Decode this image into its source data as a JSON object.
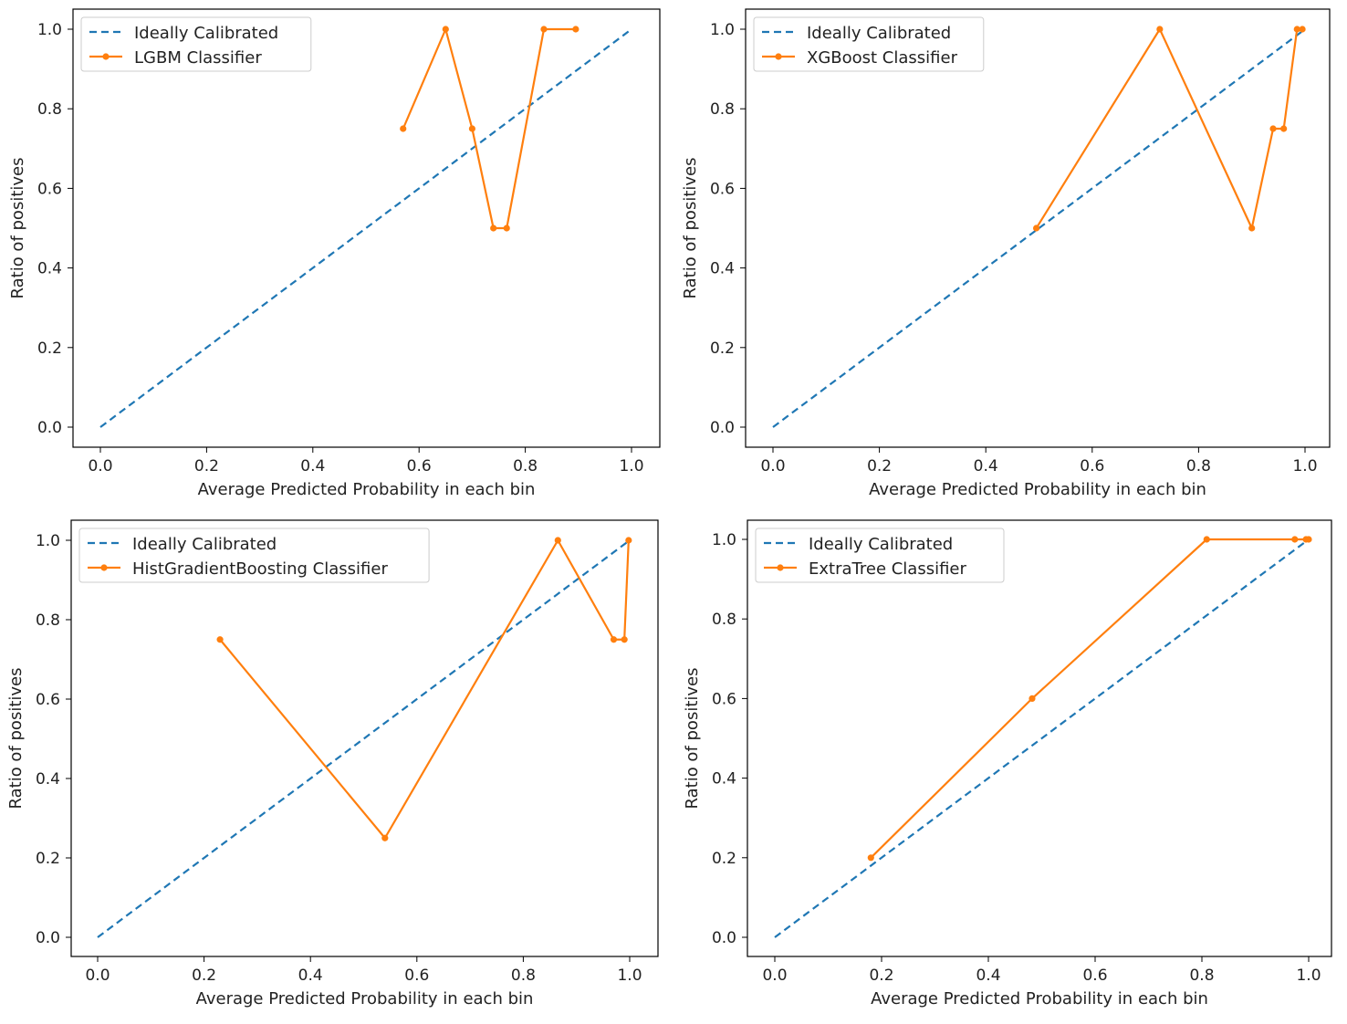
{
  "figure": {
    "shared": {
      "xlabel": "Average Predicted Probability in each bin",
      "ylabel": "Ratio of positives",
      "xticks": [
        "0.0",
        "0.2",
        "0.4",
        "0.6",
        "0.8",
        "1.0"
      ],
      "yticks": [
        "0.0",
        "0.2",
        "0.4",
        "0.6",
        "0.8",
        "1.0"
      ],
      "reference_label": "Ideally Calibrated"
    }
  },
  "colors": {
    "reference": "#1f77b4",
    "model": "#ff7f0e"
  },
  "chart_data": [
    {
      "type": "line",
      "position": "top-left",
      "title": "",
      "xlabel": "Average Predicted Probability in each bin",
      "ylabel": "Ratio of positives",
      "xlim": [
        0.0,
        1.0
      ],
      "ylim": [
        0.0,
        1.0
      ],
      "legend": "top-left",
      "series": [
        {
          "name": "Ideally Calibrated",
          "style": "dashed",
          "x": [
            0.0,
            1.0
          ],
          "y": [
            0.0,
            1.0
          ]
        },
        {
          "name": "LGBM Classifier",
          "style": "solid-marker",
          "x": [
            0.57,
            0.65,
            0.7,
            0.74,
            0.765,
            0.835,
            0.895
          ],
          "y": [
            0.75,
            1.0,
            0.75,
            0.5,
            0.5,
            1.0,
            1.0
          ]
        }
      ]
    },
    {
      "type": "line",
      "position": "top-right",
      "title": "",
      "xlabel": "Average Predicted Probability in each bin",
      "ylabel": "Ratio of positives",
      "xlim": [
        0.0,
        1.0
      ],
      "ylim": [
        0.0,
        1.0
      ],
      "legend": "top-left",
      "series": [
        {
          "name": "Ideally Calibrated",
          "style": "dashed",
          "x": [
            0.0,
            1.0
          ],
          "y": [
            0.0,
            1.0
          ]
        },
        {
          "name": "XGBoost Classifier",
          "style": "solid-marker",
          "x": [
            0.495,
            0.727,
            0.9,
            0.94,
            0.96,
            0.985,
            0.995
          ],
          "y": [
            0.5,
            1.0,
            0.5,
            0.75,
            0.75,
            1.0,
            1.0
          ]
        }
      ]
    },
    {
      "type": "line",
      "position": "bottom-left",
      "title": "",
      "xlabel": "Average Predicted Probability in each bin",
      "ylabel": "Ratio of positives",
      "xlim": [
        0.0,
        1.0
      ],
      "ylim": [
        0.0,
        1.0
      ],
      "legend": "top-left",
      "series": [
        {
          "name": "Ideally Calibrated",
          "style": "dashed",
          "x": [
            0.0,
            1.0
          ],
          "y": [
            0.0,
            1.0
          ]
        },
        {
          "name": "HistGradientBoosting Classifier",
          "style": "solid-marker",
          "x": [
            0.23,
            0.54,
            0.865,
            0.97,
            0.99,
            0.998
          ],
          "y": [
            0.75,
            0.25,
            1.0,
            0.75,
            0.75,
            1.0
          ]
        }
      ]
    },
    {
      "type": "line",
      "position": "bottom-right",
      "title": "",
      "xlabel": "Average Predicted Probability in each bin",
      "ylabel": "Ratio of positives",
      "xlim": [
        0.0,
        1.0
      ],
      "ylim": [
        0.0,
        1.0
      ],
      "legend": "top-left",
      "series": [
        {
          "name": "Ideally Calibrated",
          "style": "dashed",
          "x": [
            0.0,
            1.0
          ],
          "y": [
            0.0,
            1.0
          ]
        },
        {
          "name": "ExtraTree Classifier",
          "style": "solid-marker",
          "x": [
            0.18,
            0.482,
            0.809,
            0.974,
            0.995,
            1.0
          ],
          "y": [
            0.2,
            0.6,
            1.0,
            1.0,
            1.0,
            1.0
          ]
        }
      ]
    }
  ]
}
